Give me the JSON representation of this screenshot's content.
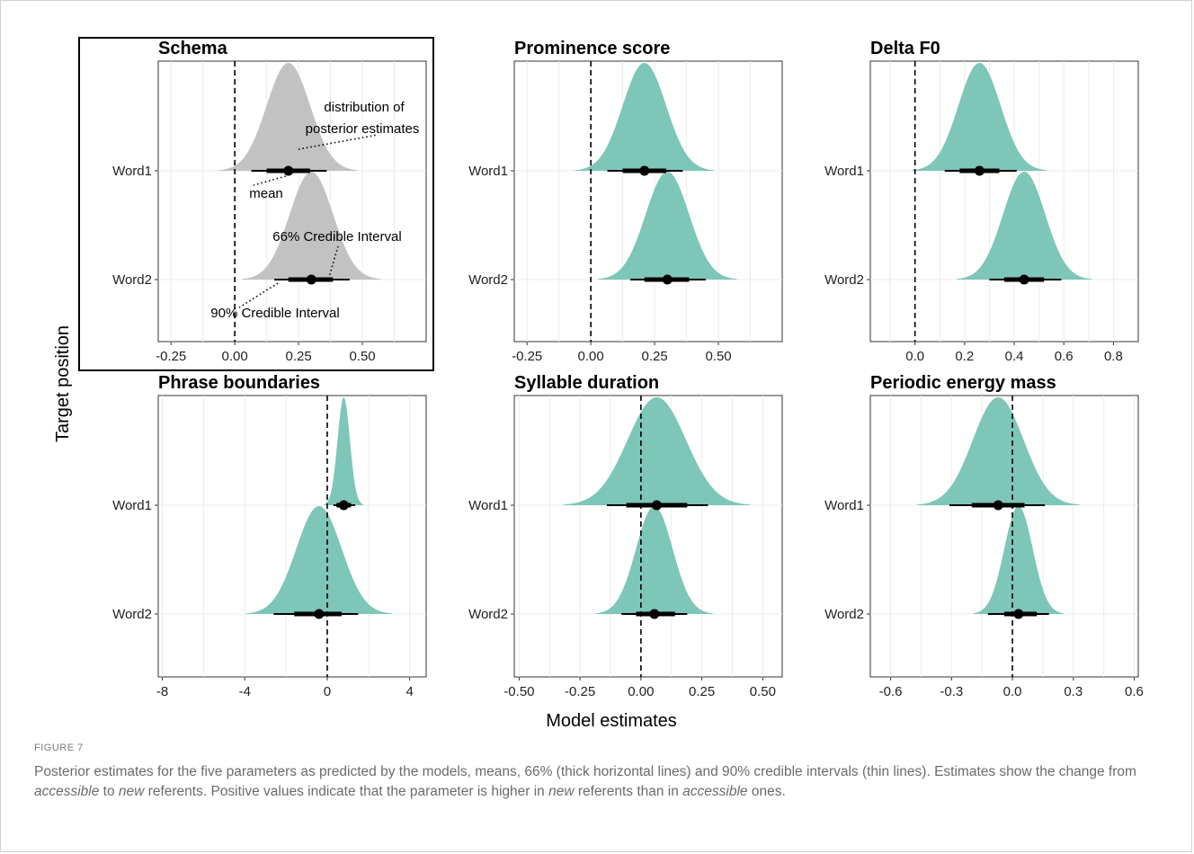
{
  "figure": {
    "label": "FIGURE 7",
    "caption": [
      {
        "t": "Posterior estimates for the five parameters as predicted by the models, means, 66% (thick horizontal lines) and 90% credible intervals (thin lines). Estimates show the change from "
      },
      {
        "t": "accessible",
        "i": true
      },
      {
        "t": " to "
      },
      {
        "t": "new",
        "i": true
      },
      {
        "t": " referents. Positive values indicate that the parameter is higher in "
      },
      {
        "t": "new",
        "i": true
      },
      {
        "t": " referents than in "
      },
      {
        "t": "accessible",
        "i": true
      },
      {
        "t": " ones."
      }
    ]
  },
  "axes": {
    "xlabel": "Model estimates",
    "ylabel": "Target position"
  },
  "colors": {
    "schema_fill": "#c2c2c2",
    "fill": "#7ec6b8",
    "point": "#000000",
    "grid": "#ebebeb"
  },
  "annotations": {
    "distribution_line1": "distribution of",
    "distribution_line2": "posterior estimates",
    "mean": "mean",
    "ci66": "66% Credible Interval",
    "ci90": "90% Credible Interval"
  },
  "chart_data": [
    {
      "type": "density",
      "title": "Schema",
      "categories": [
        "Word1",
        "Word2"
      ],
      "xlim": [
        -0.3,
        0.75
      ],
      "xticks": [
        -0.25,
        0.0,
        0.25,
        0.5
      ],
      "xtick_labels": [
        "-0.25",
        "0.00",
        "0.25",
        "0.50"
      ],
      "series": [
        {
          "category": "Word1",
          "mean": 0.21,
          "sd": 0.085,
          "ci66": [
            0.125,
            0.295
          ],
          "ci90": [
            0.065,
            0.36
          ]
        },
        {
          "category": "Word2",
          "mean": 0.3,
          "sd": 0.085,
          "ci66": [
            0.21,
            0.385
          ],
          "ci90": [
            0.155,
            0.45
          ]
        }
      ]
    },
    {
      "type": "density",
      "title": "Prominence score",
      "categories": [
        "Word1",
        "Word2"
      ],
      "xlim": [
        -0.3,
        0.75
      ],
      "xticks": [
        -0.25,
        0.0,
        0.25,
        0.5
      ],
      "xtick_labels": [
        "-0.25",
        "0.00",
        "0.25",
        "0.50"
      ],
      "series": [
        {
          "category": "Word1",
          "mean": 0.21,
          "sd": 0.085,
          "ci66": [
            0.125,
            0.295
          ],
          "ci90": [
            0.065,
            0.36
          ]
        },
        {
          "category": "Word2",
          "mean": 0.3,
          "sd": 0.085,
          "ci66": [
            0.21,
            0.385
          ],
          "ci90": [
            0.155,
            0.45
          ]
        }
      ]
    },
    {
      "type": "density",
      "title": "Delta F0",
      "categories": [
        "Word1",
        "Word2"
      ],
      "xlim": [
        -0.18,
        0.9
      ],
      "xticks": [
        0.0,
        0.2,
        0.4,
        0.6,
        0.8
      ],
      "xtick_labels": [
        "0.0",
        "0.2",
        "0.4",
        "0.6",
        "0.8"
      ],
      "series": [
        {
          "category": "Word1",
          "mean": 0.26,
          "sd": 0.085,
          "ci66": [
            0.18,
            0.34
          ],
          "ci90": [
            0.12,
            0.41
          ]
        },
        {
          "category": "Word2",
          "mean": 0.44,
          "sd": 0.085,
          "ci66": [
            0.36,
            0.52
          ],
          "ci90": [
            0.3,
            0.59
          ]
        }
      ]
    },
    {
      "type": "density",
      "title": "Phrase boundaries",
      "categories": [
        "Word1",
        "Word2"
      ],
      "xlim": [
        -8.2,
        4.8
      ],
      "xticks": [
        -8,
        -4,
        0,
        4
      ],
      "xtick_labels": [
        "-8",
        "-4",
        "0",
        "4"
      ],
      "series": [
        {
          "category": "Word1",
          "mean": 0.8,
          "sd": 0.3,
          "ci66": [
            0.45,
            1.15
          ],
          "ci90": [
            0.3,
            1.35
          ]
        },
        {
          "category": "Word2",
          "mean": -0.4,
          "sd": 1.1,
          "ci66": [
            -1.6,
            0.7
          ],
          "ci90": [
            -2.6,
            1.5
          ]
        }
      ]
    },
    {
      "type": "density",
      "title": "Syllable duration",
      "categories": [
        "Word1",
        "Word2"
      ],
      "xlim": [
        -0.52,
        0.58
      ],
      "xticks": [
        -0.5,
        -0.25,
        0.0,
        0.25,
        0.5
      ],
      "xtick_labels": [
        "-0.50",
        "-0.25",
        "0.00",
        "0.25",
        "0.50"
      ],
      "series": [
        {
          "category": "Word1",
          "mean": 0.065,
          "sd": 0.12,
          "ci66": [
            -0.06,
            0.19
          ],
          "ci90": [
            -0.14,
            0.275
          ]
        },
        {
          "category": "Word2",
          "mean": 0.055,
          "sd": 0.075,
          "ci66": [
            -0.02,
            0.14
          ],
          "ci90": [
            -0.08,
            0.19
          ]
        }
      ]
    },
    {
      "type": "density",
      "title": "Periodic energy mass",
      "categories": [
        "Word1",
        "Word2"
      ],
      "xlim": [
        -0.7,
        0.62
      ],
      "xticks": [
        -0.6,
        -0.3,
        0.0,
        0.3,
        0.6
      ],
      "xtick_labels": [
        "-0.6",
        "-0.3",
        "0.0",
        "0.3",
        "0.6"
      ],
      "series": [
        {
          "category": "Word1",
          "mean": -0.07,
          "sd": 0.125,
          "ci66": [
            -0.2,
            0.06
          ],
          "ci90": [
            -0.31,
            0.16
          ]
        },
        {
          "category": "Word2",
          "mean": 0.03,
          "sd": 0.07,
          "ci66": [
            -0.04,
            0.12
          ],
          "ci90": [
            -0.12,
            0.18
          ]
        }
      ]
    }
  ]
}
